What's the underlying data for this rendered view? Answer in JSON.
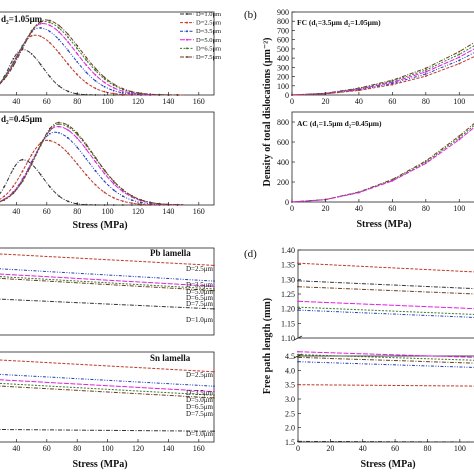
{
  "figure": {
    "panel_letters": [
      "(b)",
      "(d)"
    ]
  },
  "colors": {
    "D=1.0μm": "#333333",
    "D=2.5μm": "#c0392b",
    "D=3.5μm": "#1f3fbf",
    "D=5.0μm": "#e020e0",
    "D=6.5μm": "#3a7a2a",
    "D=7.5μm": "#6b3d1f"
  },
  "chart_data": [
    {
      "id": "a-top",
      "type": "line",
      "panel_label": "d₂=1.05μm",
      "xlabel": "",
      "ylabel": "",
      "xlim": [
        20,
        170
      ],
      "ylim": [
        0,
        1.15
      ],
      "x_ticks": [
        "40",
        "60",
        "80",
        "100",
        "120",
        "140",
        "160"
      ],
      "legend": [
        "D=1.0μm",
        "D=2.5μm",
        "D=3.5μm",
        "D=5.0μm",
        "D=6.5μm",
        "D=7.5μm"
      ],
      "legend_placement": "top-right",
      "series": [
        {
          "name": "D=1.0μm",
          "peak_x": 44,
          "peak_y": 0.63,
          "width": 14
        },
        {
          "name": "D=2.5μm",
          "peak_x": 52,
          "peak_y": 0.83,
          "width": 20
        },
        {
          "name": "D=3.5μm",
          "peak_x": 55,
          "peak_y": 0.93,
          "width": 22
        },
        {
          "name": "D=5.0μm",
          "peak_x": 57,
          "peak_y": 0.99,
          "width": 23
        },
        {
          "name": "D=6.5μm",
          "peak_x": 58,
          "peak_y": 1.02,
          "width": 24
        },
        {
          "name": "D=7.5μm",
          "peak_x": 59,
          "peak_y": 1.04,
          "width": 24
        }
      ]
    },
    {
      "id": "a-bottom",
      "type": "line",
      "panel_label": "d₂=0.45μm",
      "xlabel": "Stress (MPa)",
      "ylabel": "",
      "xlim": [
        20,
        170
      ],
      "ylim": [
        0,
        1.15
      ],
      "x_ticks": [
        "40",
        "60",
        "80",
        "100",
        "120",
        "140",
        "160"
      ],
      "series": [
        {
          "name": "D=1.0μm",
          "peak_x": 44,
          "peak_y": 0.56,
          "width": 14
        },
        {
          "name": "D=2.5μm",
          "peak_x": 60,
          "peak_y": 0.8,
          "width": 22
        },
        {
          "name": "D=3.5μm",
          "peak_x": 65,
          "peak_y": 0.9,
          "width": 23
        },
        {
          "name": "D=5.0μm",
          "peak_x": 67,
          "peak_y": 0.97,
          "width": 24
        },
        {
          "name": "D=6.5μm",
          "peak_x": 68,
          "peak_y": 1.0,
          "width": 24
        },
        {
          "name": "D=7.5μm",
          "peak_x": 68,
          "peak_y": 1.02,
          "width": 24
        }
      ]
    },
    {
      "id": "b-top",
      "type": "line",
      "panel_label": "FC (d₁=3.5μm d₂=1.05μm)",
      "xlabel": "",
      "ylabel": "Density of total dislocations (μm⁻²)",
      "xlim": [
        0,
        110
      ],
      "ylim": [
        0,
        900
      ],
      "x_ticks": [
        "0",
        "20",
        "40",
        "60",
        "80",
        "100"
      ],
      "y_ticks": [
        "0",
        "100",
        "200",
        "300",
        "400",
        "500",
        "600",
        "700",
        "800",
        "900"
      ],
      "series": [
        {
          "name": "D=7.5μm",
          "values_x": [
            0,
            20,
            40,
            60,
            80,
            100,
            110
          ],
          "values_y": [
            0,
            20,
            75,
            160,
            290,
            470,
            580
          ]
        },
        {
          "name": "D=6.5μm",
          "values_x": [
            0,
            20,
            40,
            60,
            80,
            100,
            110
          ],
          "values_y": [
            0,
            18,
            70,
            150,
            270,
            440,
            545
          ]
        },
        {
          "name": "D=5.0μm",
          "values_x": [
            0,
            20,
            40,
            60,
            80,
            100,
            110
          ],
          "values_y": [
            0,
            16,
            63,
            138,
            250,
            410,
            510
          ]
        },
        {
          "name": "D=3.5μm",
          "values_x": [
            0,
            20,
            40,
            60,
            80,
            100,
            110
          ],
          "values_y": [
            0,
            14,
            56,
            125,
            228,
            375,
            470
          ]
        },
        {
          "name": "D=2.5μm",
          "values_x": [
            0,
            20,
            40,
            60,
            80,
            100,
            110
          ],
          "values_y": [
            0,
            12,
            50,
            112,
            205,
            340,
            425
          ]
        }
      ]
    },
    {
      "id": "b-bottom",
      "type": "line",
      "panel_label": "AC (d₁=1.5μm d₂=0.45μm)",
      "xlabel": "Stress (MPa)",
      "ylabel": "",
      "xlim": [
        0,
        110
      ],
      "ylim": [
        0,
        900
      ],
      "x_ticks": [
        "0",
        "20",
        "40",
        "60",
        "80",
        "100"
      ],
      "y_ticks": [
        "0",
        "200",
        "400",
        "600",
        "800"
      ],
      "series": [
        {
          "name": "D=7.5μm",
          "values_x": [
            0,
            20,
            40,
            60,
            80,
            100,
            110
          ],
          "values_y": [
            0,
            25,
            100,
            225,
            410,
            660,
            800
          ]
        },
        {
          "name": "D=6.5μm",
          "values_x": [
            0,
            20,
            40,
            60,
            80,
            100,
            110
          ],
          "values_y": [
            0,
            24,
            97,
            218,
            398,
            642,
            780
          ]
        },
        {
          "name": "D=5.0μm",
          "values_x": [
            0,
            20,
            40,
            60,
            80,
            100,
            110
          ],
          "values_y": [
            0,
            23,
            94,
            211,
            386,
            624,
            760
          ]
        }
      ]
    },
    {
      "id": "c-top",
      "type": "line",
      "panel_label": "Pb lamella",
      "xlabel": "",
      "ylabel": "",
      "xlim": [
        20,
        170
      ],
      "ylim": [
        0,
        1
      ],
      "x_ticks": [],
      "legend": [
        "D=2.5μm",
        "D=3.5μm",
        "D=5.0μm",
        "D=6.5μm",
        "D=7.5μm",
        "D=1.0μm"
      ],
      "series": [
        {
          "name": "D=2.5μm",
          "values_x": [
            20,
            170
          ],
          "values_y": [
            0.94,
            0.8
          ]
        },
        {
          "name": "D=3.5μm",
          "values_x": [
            20,
            170
          ],
          "values_y": [
            0.77,
            0.62
          ]
        },
        {
          "name": "D=5.0μm",
          "values_x": [
            20,
            170
          ],
          "values_y": [
            0.71,
            0.56
          ]
        },
        {
          "name": "D=6.5μm",
          "values_x": [
            20,
            170
          ],
          "values_y": [
            0.68,
            0.53
          ]
        },
        {
          "name": "D=7.5μm",
          "values_x": [
            20,
            170
          ],
          "values_y": [
            0.66,
            0.51
          ]
        },
        {
          "name": "D=1.0μm",
          "values_x": [
            20,
            170
          ],
          "values_y": [
            0.42,
            0.3
          ]
        }
      ]
    },
    {
      "id": "c-bottom",
      "type": "line",
      "panel_label": "Sn lamella",
      "xlabel": "Stress (MPa)",
      "ylabel": "",
      "xlim": [
        20,
        170
      ],
      "ylim": [
        0,
        1
      ],
      "x_ticks": [
        "40",
        "60",
        "80",
        "100",
        "120",
        "140",
        "160"
      ],
      "legend": [
        "D=2.5μm",
        "D=3.5μm",
        "D=5.0μm",
        "D=6.5μm",
        "D=7.5μm",
        "D=1.0μm"
      ],
      "series": [
        {
          "name": "D=2.5μm",
          "values_x": [
            20,
            170
          ],
          "values_y": [
            0.92,
            0.78
          ]
        },
        {
          "name": "D=3.5μm",
          "values_x": [
            20,
            170
          ],
          "values_y": [
            0.76,
            0.62
          ]
        },
        {
          "name": "D=5.0μm",
          "values_x": [
            20,
            170
          ],
          "values_y": [
            0.7,
            0.56
          ]
        },
        {
          "name": "D=6.5μm",
          "values_x": [
            20,
            170
          ],
          "values_y": [
            0.66,
            0.52
          ]
        },
        {
          "name": "D=7.5μm",
          "values_x": [
            20,
            170
          ],
          "values_y": [
            0.63,
            0.49
          ]
        },
        {
          "name": "D=1.0μm",
          "values_x": [
            20,
            170
          ],
          "values_y": [
            0.14,
            0.12
          ]
        }
      ]
    },
    {
      "id": "d",
      "type": "line",
      "panel_label": "",
      "xlabel": "Stress (MPa)",
      "ylabel": "Free path length (mm)",
      "xlim": [
        0,
        110
      ],
      "y_ticks": [
        "1.40",
        "1.35",
        "1.30",
        "1.25",
        "1.20",
        "1.15",
        "1.10",
        "4.5",
        "4.0",
        "3.5",
        "3.0",
        "2.5",
        "2.0",
        "1.5"
      ],
      "x_ticks": [
        "0",
        "20",
        "40",
        "60",
        "80",
        "100"
      ],
      "broken_axis": true,
      "upper_ylim": [
        1.1,
        1.4
      ],
      "lower_ylim": [
        1.5,
        4.5
      ],
      "series_upper": [
        {
          "name": "D=2.5μm",
          "values_x": [
            0,
            110
          ],
          "values_y": [
            1.355,
            1.325
          ]
        },
        {
          "name": "D=1.0μm",
          "values_x": [
            0,
            110
          ],
          "values_y": [
            1.295,
            1.268
          ]
        },
        {
          "name": "D=7.5μm",
          "values_x": [
            0,
            110
          ],
          "values_y": [
            1.275,
            1.25
          ]
        },
        {
          "name": "D=5.0μm",
          "values_x": [
            0,
            110
          ],
          "values_y": [
            1.225,
            1.2
          ]
        },
        {
          "name": "D=6.5μm",
          "values_x": [
            0,
            110
          ],
          "values_y": [
            1.205,
            1.18
          ]
        },
        {
          "name": "D=3.5μm",
          "values_x": [
            0,
            110
          ],
          "values_y": [
            1.195,
            1.17
          ]
        }
      ],
      "series_lower": [
        {
          "name": "D=5.0μm",
          "values_x": [
            0,
            110
          ],
          "values_y": [
            4.65,
            4.45
          ]
        },
        {
          "name": "D=6.5μm",
          "values_x": [
            0,
            110
          ],
          "values_y": [
            4.55,
            4.35
          ]
        },
        {
          "name": "D=7.5μm",
          "values_x": [
            0,
            110
          ],
          "values_y": [
            4.45,
            4.25
          ]
        },
        {
          "name": "D=3.5μm",
          "values_x": [
            0,
            110
          ],
          "values_y": [
            4.3,
            4.1
          ]
        },
        {
          "name": "D=2.5μm",
          "values_x": [
            0,
            110
          ],
          "values_y": [
            3.5,
            3.45
          ]
        },
        {
          "name": "D=1.0μm",
          "values_x": [
            0,
            110
          ],
          "values_y": [
            1.52,
            1.5
          ]
        }
      ]
    }
  ]
}
